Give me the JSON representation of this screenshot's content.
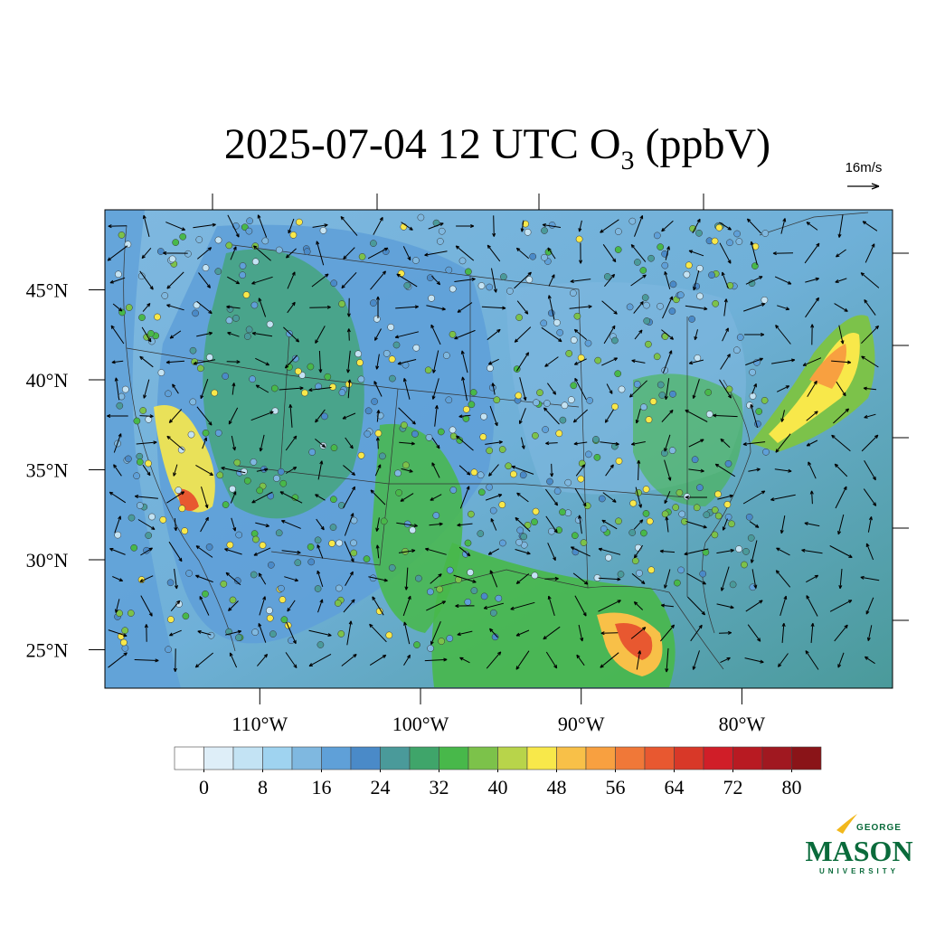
{
  "title": {
    "main": "2025-07-04 12 UTC O",
    "subscript": "3",
    "suffix": " (ppbV)"
  },
  "vector_reference": "16m/s",
  "map": {
    "lat_ticks": [
      {
        "value": 45,
        "label": "45°N"
      },
      {
        "value": 40,
        "label": "40°N"
      },
      {
        "value": 35,
        "label": "35°N"
      },
      {
        "value": 30,
        "label": "30°N"
      },
      {
        "value": 25,
        "label": "25°N"
      }
    ],
    "lon_ticks": [
      {
        "value": -110,
        "label": "110°W"
      },
      {
        "value": -100,
        "label": "100°W"
      },
      {
        "value": -90,
        "label": "90°W"
      },
      {
        "value": -80,
        "label": "80°W"
      }
    ]
  },
  "colorbar": {
    "range": [
      -4,
      84
    ],
    "ticks": [
      0,
      8,
      16,
      24,
      32,
      40,
      48,
      56,
      64,
      72,
      80
    ],
    "colors": [
      "#ffffff",
      "#deeef8",
      "#c3e3f4",
      "#9fd3f0",
      "#7fb8e0",
      "#5fa0d8",
      "#4a8ac8",
      "#4a9a9a",
      "#3fa56a",
      "#48b84a",
      "#7cc24a",
      "#b8d44a",
      "#f8e84a",
      "#f8c048",
      "#f8a040",
      "#f07838",
      "#e85830",
      "#d83828",
      "#d01e28",
      "#b81a22",
      "#a01820",
      "#8a1418"
    ]
  },
  "logo": {
    "top": "GEORGE",
    "main": "MASON",
    "bottom": "UNIVERSITY"
  }
}
